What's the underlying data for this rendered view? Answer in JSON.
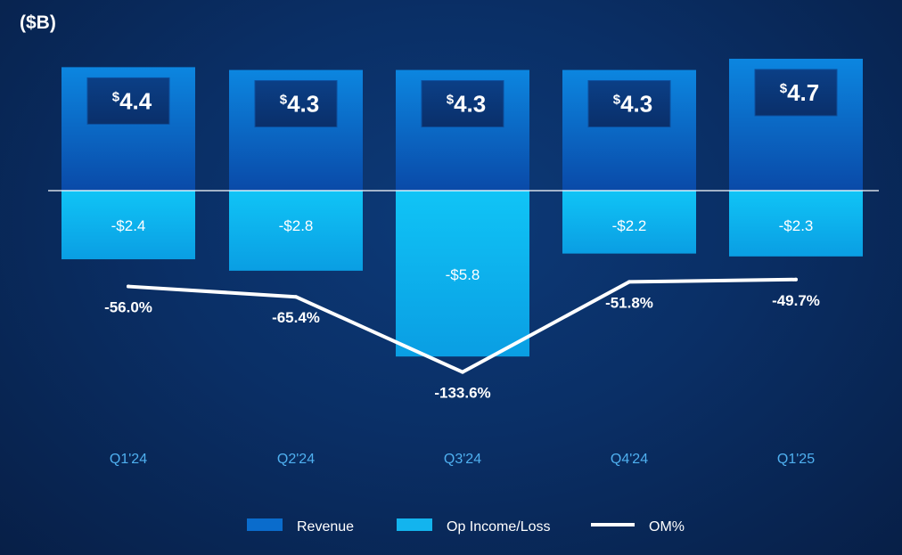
{
  "unit_label": "($B)",
  "chart_data": {
    "type": "bar",
    "categories": [
      "Q1'24",
      "Q2'24",
      "Q3'24",
      "Q4'24",
      "Q1'25"
    ],
    "series": [
      {
        "name": "Revenue",
        "values": [
          4.4,
          4.3,
          4.3,
          4.3,
          4.7
        ],
        "labels": [
          "4.4",
          "4.3",
          "4.3",
          "4.3",
          "4.7"
        ],
        "label_prefix": "$",
        "color": "#0a6ccc"
      },
      {
        "name": "Op Income/Loss",
        "values": [
          -2.4,
          -2.8,
          -5.8,
          -2.2,
          -2.3
        ],
        "labels": [
          "-$2.4",
          "-$2.8",
          "-$5.8",
          "-$2.2",
          "-$2.3"
        ],
        "color": "#13b4ee"
      },
      {
        "name": "OM%",
        "type": "line",
        "values": [
          -56.0,
          -65.4,
          -133.6,
          -51.8,
          -49.7
        ],
        "labels": [
          "-56.0%",
          "-65.4%",
          "-133.6%",
          "-51.8%",
          "-49.7%"
        ],
        "color": "#ffffff"
      }
    ],
    "legend_position": "bottom",
    "grid": false
  }
}
